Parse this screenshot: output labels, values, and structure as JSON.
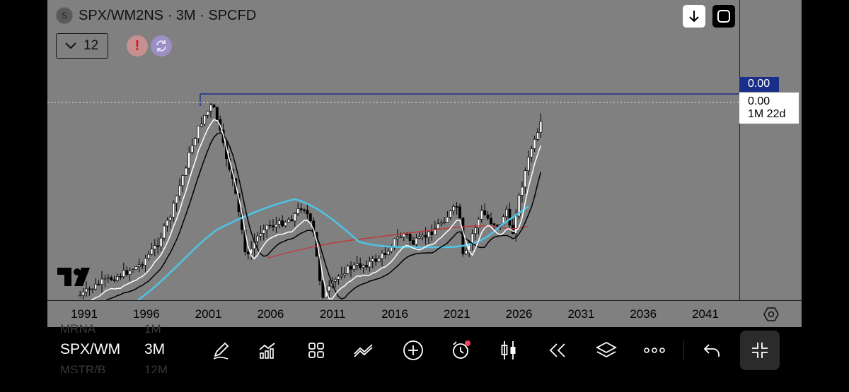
{
  "header": {
    "symbol_logo_letter": "S",
    "title": "SPX/WM2NS · 3M · SPCFD",
    "interval_value": "12"
  },
  "price_scale": {
    "last_price_label": "0.00",
    "cursor_price": "0.00",
    "cursor_countdown": "1M 22d"
  },
  "time_axis": {
    "ticks": [
      "1991",
      "1996",
      "2001",
      "2006",
      "2011",
      "2016",
      "2021",
      "2026",
      "2031",
      "2036",
      "2041"
    ]
  },
  "bottom_bar": {
    "symbol": "SPX/WM",
    "timeframe": "3M",
    "ghost_above_symbol": "MRNA",
    "ghost_above_tf": "1M",
    "ghost_below_symbol": "MSTR/B",
    "ghost_below_tf": "12M"
  },
  "colors": {
    "chart_background": "#808080",
    "last_price_line": "#1a2f8a",
    "ma_white": "#ffffff",
    "ma_black": "#000000",
    "ma_cyan": "#4fc3e3",
    "ma_red": "#c0393b"
  },
  "icons": [
    "download-icon",
    "fullscreen-icon",
    "chevron-down-icon",
    "alert-icon",
    "sync-icon",
    "settings-icon",
    "pencil-icon",
    "indicators-icon",
    "templates-icon",
    "compare-icon",
    "add-icon",
    "alarm-icon",
    "candles-icon",
    "replay-icon",
    "layers-icon",
    "more-icon",
    "undo-icon",
    "collapse-icon"
  ]
}
